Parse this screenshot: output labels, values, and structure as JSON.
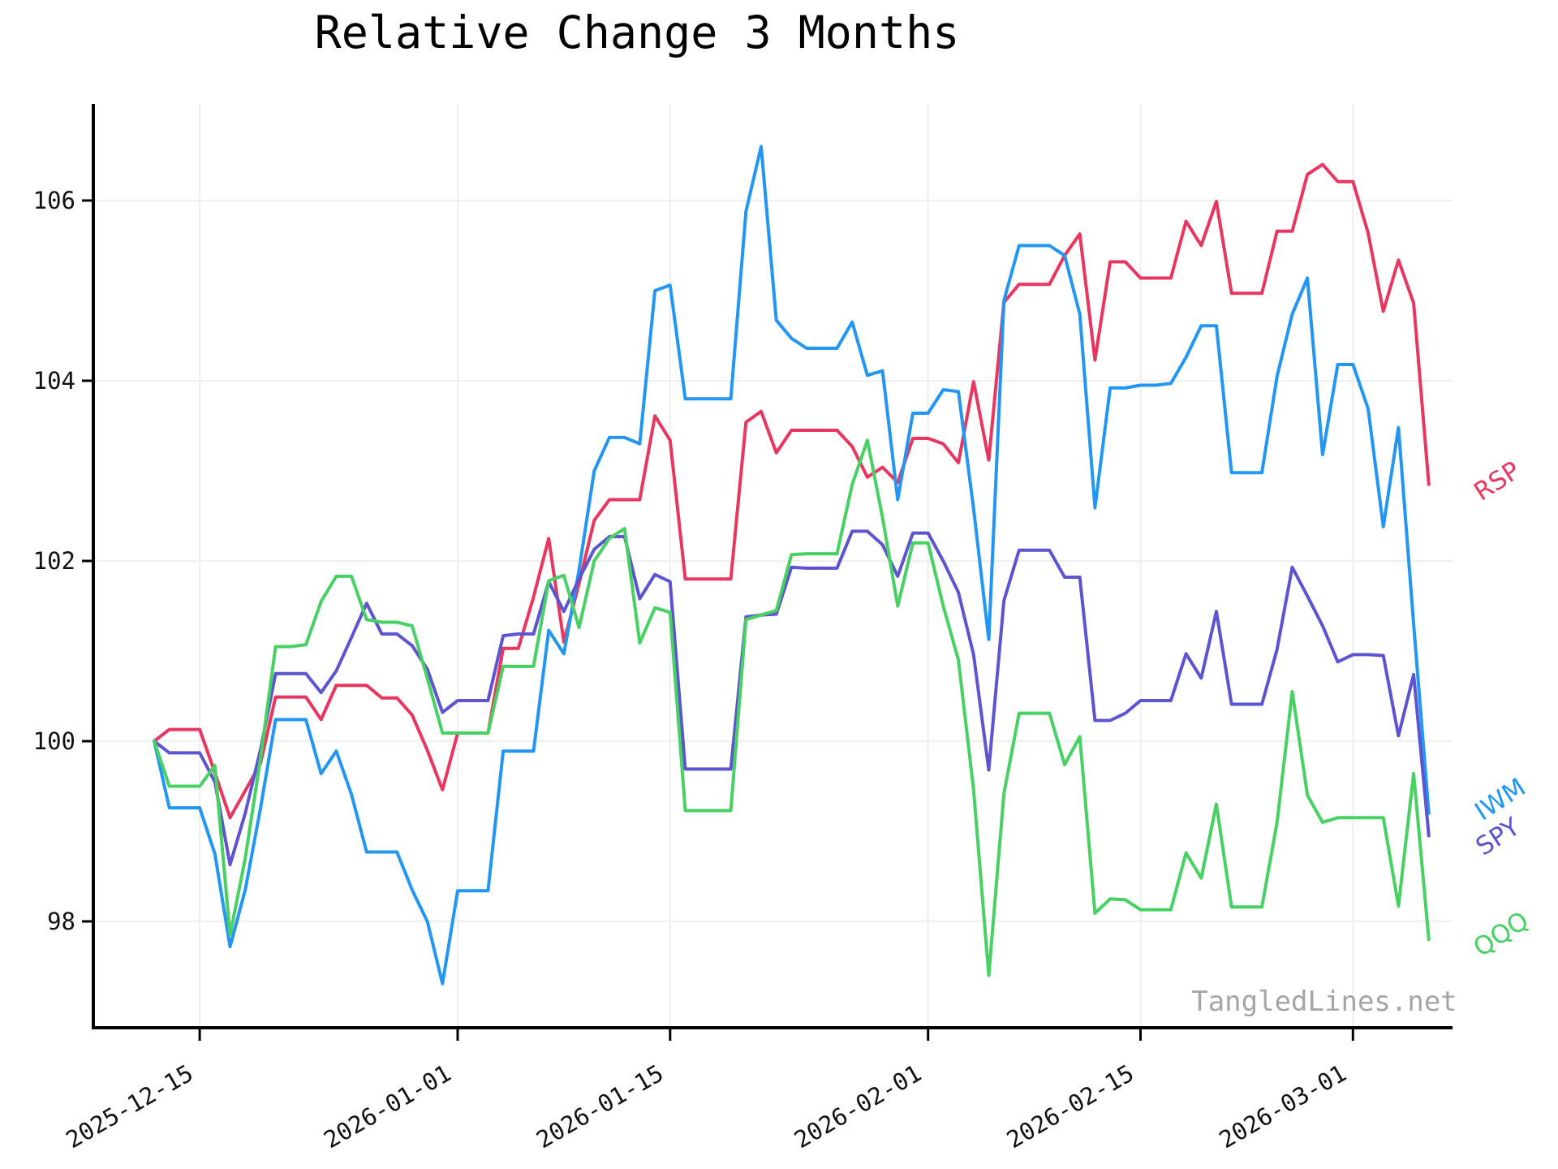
{
  "chart": {
    "title": "Relative Change 3 Months",
    "watermark": "TangledLines.net",
    "background_color": "#ffffff",
    "grid_color": "#efefef",
    "axis_color": "#000000"
  },
  "chart_data": {
    "type": "line",
    "title": "Relative Change 3 Months",
    "xlabel": "",
    "ylabel": "",
    "grid": true,
    "legend_position": "right-margin-at-line-ends",
    "ylim": [
      96.8,
      107.1
    ],
    "y_ticks": [
      98,
      100,
      102,
      104,
      106
    ],
    "y_tick_labels": [
      "98",
      "100",
      "102",
      "104",
      "106"
    ],
    "x_tick_labels": [
      "2025-12-15",
      "2026-01-01",
      "2026-01-15",
      "2026-02-01",
      "2026-02-15",
      "2026-03-01"
    ],
    "x_tick_indices": [
      3,
      20,
      34,
      51,
      65,
      79
    ],
    "x": [
      "2025-12-12",
      "2025-12-13",
      "2025-12-14",
      "2025-12-15",
      "2025-12-16",
      "2025-12-17",
      "2025-12-18",
      "2025-12-19",
      "2025-12-20",
      "2025-12-21",
      "2025-12-22",
      "2025-12-23",
      "2025-12-24",
      "2025-12-25",
      "2025-12-26",
      "2025-12-27",
      "2025-12-28",
      "2025-12-29",
      "2025-12-30",
      "2025-12-31",
      "2026-01-01",
      "2026-01-02",
      "2026-01-03",
      "2026-01-04",
      "2026-01-05",
      "2026-01-06",
      "2026-01-07",
      "2026-01-08",
      "2026-01-09",
      "2026-01-10",
      "2026-01-11",
      "2026-01-12",
      "2026-01-13",
      "2026-01-14",
      "2026-01-15",
      "2026-01-16",
      "2026-01-17",
      "2026-01-18",
      "2026-01-19",
      "2026-01-20",
      "2026-01-21",
      "2026-01-22",
      "2026-01-23",
      "2026-01-24",
      "2026-01-25",
      "2026-01-26",
      "2026-01-27",
      "2026-01-28",
      "2026-01-29",
      "2026-01-30",
      "2026-01-31",
      "2026-02-01",
      "2026-02-02",
      "2026-02-03",
      "2026-02-04",
      "2026-02-05",
      "2026-02-06",
      "2026-02-07",
      "2026-02-08",
      "2026-02-09",
      "2026-02-10",
      "2026-02-11",
      "2026-02-12",
      "2026-02-13",
      "2026-02-14",
      "2026-02-15",
      "2026-02-16",
      "2026-02-17",
      "2026-02-18",
      "2026-02-19",
      "2026-02-20",
      "2026-02-21",
      "2026-02-22",
      "2026-02-23",
      "2026-02-24",
      "2026-02-25",
      "2026-02-26",
      "2026-02-27",
      "2026-02-28",
      "2026-03-01",
      "2026-03-02",
      "2026-03-03",
      "2026-03-04",
      "2026-03-05",
      "2026-03-06"
    ],
    "series": [
      {
        "name": "RSP",
        "color": "#e9365f",
        "values": [
          100.0,
          100.13,
          100.13,
          100.13,
          99.65,
          99.15,
          99.45,
          99.75,
          100.49,
          100.49,
          100.49,
          100.24,
          100.62,
          100.62,
          100.62,
          100.48,
          100.48,
          100.29,
          99.9,
          99.46,
          100.09,
          100.09,
          100.09,
          101.03,
          101.03,
          101.6,
          102.25,
          101.1,
          101.75,
          102.45,
          102.68,
          102.68,
          102.68,
          103.61,
          103.34,
          101.8,
          101.8,
          101.8,
          101.8,
          103.54,
          103.66,
          103.2,
          103.45,
          103.45,
          103.45,
          103.45,
          103.27,
          102.93,
          103.04,
          102.87,
          103.36,
          103.36,
          103.3,
          103.09,
          103.99,
          103.12,
          104.87,
          105.07,
          105.07,
          105.07,
          105.39,
          105.63,
          104.23,
          105.32,
          105.32,
          105.14,
          105.14,
          105.14,
          105.77,
          105.5,
          105.99,
          104.97,
          104.97,
          104.97,
          105.66,
          105.66,
          106.29,
          106.4,
          106.21,
          106.21,
          105.64,
          104.77,
          105.34,
          104.86,
          102.85
        ]
      },
      {
        "name": "IWM",
        "color": "#2196f3",
        "values": [
          100.0,
          99.26,
          99.26,
          99.26,
          98.75,
          97.72,
          98.35,
          99.25,
          100.24,
          100.24,
          100.24,
          99.64,
          99.89,
          99.41,
          98.77,
          98.77,
          98.77,
          98.35,
          98.0,
          97.31,
          98.34,
          98.34,
          98.34,
          99.89,
          99.89,
          99.89,
          101.23,
          100.97,
          101.9,
          103.0,
          103.37,
          103.37,
          103.3,
          105.0,
          105.06,
          103.8,
          103.8,
          103.8,
          103.8,
          105.88,
          106.6,
          104.67,
          104.47,
          104.36,
          104.36,
          104.36,
          104.65,
          104.06,
          104.11,
          102.68,
          103.64,
          103.64,
          103.9,
          103.88,
          102.58,
          101.13,
          104.89,
          105.5,
          105.5,
          105.5,
          105.39,
          104.74,
          102.59,
          103.92,
          103.92,
          103.95,
          103.95,
          103.97,
          104.26,
          104.61,
          104.61,
          102.98,
          102.98,
          102.98,
          104.05,
          104.74,
          105.14,
          103.18,
          104.18,
          104.18,
          103.69,
          102.38,
          103.48,
          101.3,
          99.2
        ]
      },
      {
        "name": "SPY",
        "color": "#5c54d0",
        "values": [
          100.0,
          99.87,
          99.87,
          99.87,
          99.55,
          98.63,
          99.2,
          99.9,
          100.75,
          100.75,
          100.75,
          100.54,
          100.78,
          101.15,
          101.53,
          101.19,
          101.19,
          101.06,
          100.8,
          100.32,
          100.45,
          100.45,
          100.45,
          101.17,
          101.19,
          101.19,
          101.77,
          101.44,
          101.8,
          102.13,
          102.27,
          102.27,
          101.58,
          101.85,
          101.77,
          99.69,
          99.69,
          99.69,
          99.69,
          101.38,
          101.4,
          101.41,
          101.93,
          101.92,
          101.92,
          101.92,
          102.33,
          102.33,
          102.18,
          101.83,
          102.31,
          102.31,
          102.0,
          101.65,
          100.96,
          99.68,
          101.56,
          102.12,
          102.12,
          102.12,
          101.82,
          101.82,
          100.23,
          100.23,
          100.31,
          100.45,
          100.45,
          100.45,
          100.97,
          100.7,
          101.44,
          100.41,
          100.41,
          100.41,
          101.02,
          101.93,
          101.61,
          101.28,
          100.88,
          100.96,
          100.96,
          100.95,
          100.06,
          100.74,
          98.95
        ]
      },
      {
        "name": "QQQ",
        "color": "#48d163",
        "values": [
          100.0,
          99.5,
          99.5,
          99.5,
          99.73,
          97.85,
          98.7,
          99.8,
          101.05,
          101.05,
          101.07,
          101.55,
          101.83,
          101.83,
          101.35,
          101.32,
          101.32,
          101.28,
          100.7,
          100.09,
          100.09,
          100.09,
          100.09,
          100.83,
          100.83,
          100.83,
          101.78,
          101.84,
          101.26,
          102.0,
          102.25,
          102.36,
          101.09,
          101.48,
          101.43,
          99.23,
          99.23,
          99.23,
          99.23,
          101.35,
          101.4,
          101.45,
          102.07,
          102.08,
          102.08,
          102.08,
          102.85,
          103.34,
          102.48,
          101.5,
          102.2,
          102.2,
          101.5,
          100.9,
          99.46,
          97.4,
          99.42,
          100.31,
          100.31,
          100.31,
          99.74,
          100.05,
          98.09,
          98.25,
          98.24,
          98.13,
          98.13,
          98.13,
          98.76,
          98.48,
          99.3,
          98.16,
          98.16,
          98.16,
          99.1,
          100.55,
          99.4,
          99.1,
          99.15,
          99.15,
          99.15,
          99.15,
          98.17,
          99.64,
          97.8
        ]
      }
    ]
  }
}
